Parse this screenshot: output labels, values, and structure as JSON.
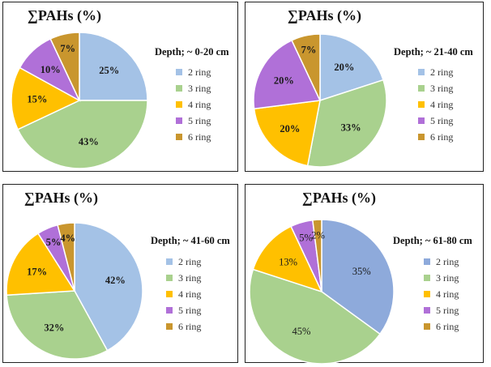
{
  "chart_data": [
    {
      "type": "pie",
      "title": "∑PAHs (%)",
      "subtitle": "Depth; ~ 0-20 cm",
      "categories": [
        "2 ring",
        "3 ring",
        "4 ring",
        "5 ring",
        "6 ring"
      ],
      "values": [
        25,
        43,
        15,
        10,
        7
      ],
      "labels": [
        "25%",
        "43%",
        "15%",
        "10%",
        "7%"
      ],
      "colors": [
        "#a4c2e6",
        "#a9d18e",
        "#ffc000",
        "#b070d8",
        "#c9962e"
      ],
      "legend": "right"
    },
    {
      "type": "pie",
      "title": "∑PAHs (%)",
      "subtitle": "Depth; ~ 21-40 cm",
      "categories": [
        "2 ring",
        "3 ring",
        "4 ring",
        "5 ring",
        "6 ring"
      ],
      "values": [
        20,
        33,
        20,
        20,
        7
      ],
      "labels": [
        "20%",
        "33%",
        "20%",
        "20%",
        "7%"
      ],
      "colors": [
        "#a4c2e6",
        "#a9d18e",
        "#ffc000",
        "#b070d8",
        "#c9962e"
      ],
      "legend": "right"
    },
    {
      "type": "pie",
      "title": "∑PAHs (%)",
      "subtitle": "Depth; ~ 41-60 cm",
      "categories": [
        "2 ring",
        "3 ring",
        "4 ring",
        "5 ring",
        "6 ring"
      ],
      "values": [
        42,
        32,
        17,
        5,
        4
      ],
      "labels": [
        "42%",
        "32%",
        "17%",
        "5%",
        "4%"
      ],
      "colors": [
        "#a4c2e6",
        "#a9d18e",
        "#ffc000",
        "#b070d8",
        "#c9962e"
      ],
      "legend": "right"
    },
    {
      "type": "pie",
      "title": "∑PAHs (%)",
      "subtitle": "Depth; ~ 61-80 cm",
      "categories": [
        "2 ring",
        "3 ring",
        "4 ring",
        "5 ring",
        "6 ring"
      ],
      "values": [
        35,
        45,
        13,
        5,
        2
      ],
      "labels": [
        "35%",
        "45%",
        "13%",
        "5%",
        "2%"
      ],
      "colors": [
        "#8eaadb",
        "#a9d18e",
        "#ffc000",
        "#b070d8",
        "#c9962e"
      ],
      "legend": "right"
    }
  ]
}
